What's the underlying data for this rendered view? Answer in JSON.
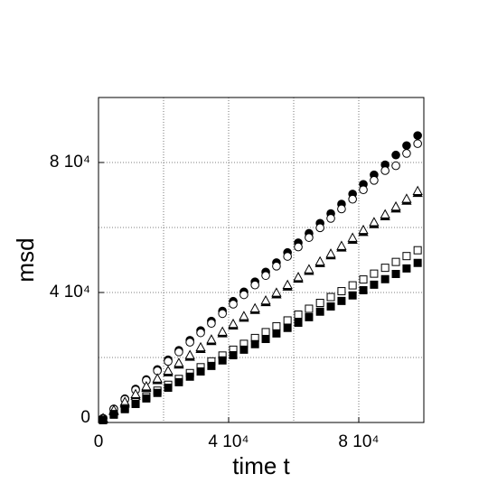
{
  "chart_data": {
    "type": "scatter",
    "x_label": "time t",
    "y_label": "msd",
    "xlim": [
      0,
      100000
    ],
    "ylim": [
      0,
      100000
    ],
    "xticks": [
      0,
      {
        "value": 40000,
        "label": "4 10⁴"
      },
      {
        "value": 80000,
        "label": "8 10⁴"
      }
    ],
    "yticks": [
      0,
      {
        "value": 40000,
        "label": "4 10⁴"
      },
      {
        "value": 80000,
        "label": "8 10⁴"
      }
    ],
    "xgrid": [
      20000,
      40000,
      60000,
      80000
    ],
    "ygrid": [
      20000,
      40000,
      60000,
      80000
    ],
    "grid": true,
    "x": [
      1400,
      4700,
      8100,
      11400,
      14700,
      18100,
      21400,
      24700,
      28100,
      31400,
      34700,
      38100,
      41400,
      44700,
      48100,
      51400,
      54700,
      58100,
      61400,
      64700,
      68100,
      71400,
      74700,
      78100,
      81400,
      84700,
      88100,
      91400,
      94700,
      98100
    ],
    "series": [
      {
        "marker": "circle",
        "filled": true,
        "color": "#000000",
        "values": [
          1300,
          4200,
          7300,
          10300,
          13200,
          16300,
          19300,
          22200,
          25300,
          28300,
          31200,
          34300,
          37300,
          40200,
          43300,
          46300,
          49200,
          52300,
          55300,
          58200,
          61300,
          64300,
          67200,
          70300,
          73300,
          76200,
          79300,
          82300,
          85200,
          88300
        ]
      },
      {
        "marker": "circle",
        "filled": false,
        "color": "#000000",
        "values": [
          1200,
          4100,
          7100,
          10000,
          12900,
          15900,
          18800,
          21700,
          24700,
          27600,
          30500,
          33500,
          36400,
          39300,
          42300,
          45200,
          48100,
          51100,
          54000,
          56900,
          59900,
          62800,
          65700,
          68700,
          71600,
          74500,
          77500,
          79000,
          82800,
          85800
        ]
      },
      {
        "marker": "triangle",
        "filled": true,
        "color": "#000000",
        "values": [
          1000,
          3400,
          5800,
          8200,
          10600,
          13000,
          15400,
          17800,
          20200,
          22600,
          25000,
          27400,
          29800,
          32200,
          34600,
          37000,
          39400,
          41800,
          44200,
          46600,
          49000,
          51400,
          53800,
          56200,
          58600,
          61000,
          63400,
          65800,
          68200,
          70600
        ]
      },
      {
        "marker": "triangle",
        "filled": false,
        "color": "#000000",
        "values": [
          1300,
          3800,
          6300,
          8700,
          11100,
          13500,
          15900,
          18300,
          20700,
          23100,
          25500,
          27900,
          30300,
          32700,
          35100,
          37500,
          39900,
          42300,
          44700,
          47100,
          49500,
          51900,
          54300,
          56800,
          59200,
          61600,
          64000,
          66400,
          68800,
          71200
        ]
      },
      {
        "marker": "square",
        "filled": false,
        "color": "#000000",
        "values": [
          800,
          2600,
          4400,
          6200,
          8000,
          9800,
          11600,
          13400,
          15200,
          17000,
          18800,
          20600,
          22400,
          24200,
          26000,
          27800,
          29600,
          31400,
          33200,
          35000,
          36800,
          38600,
          40400,
          42200,
          44000,
          45800,
          47600,
          49400,
          51200,
          53000
        ]
      },
      {
        "marker": "square",
        "filled": true,
        "color": "#000000",
        "values": [
          700,
          2400,
          4100,
          5700,
          7400,
          9100,
          10700,
          12400,
          14100,
          15700,
          17400,
          19100,
          20700,
          22400,
          24100,
          25700,
          27400,
          29100,
          30700,
          32400,
          34100,
          35700,
          37400,
          39100,
          40700,
          42400,
          44100,
          45700,
          47400,
          49100
        ]
      }
    ]
  }
}
